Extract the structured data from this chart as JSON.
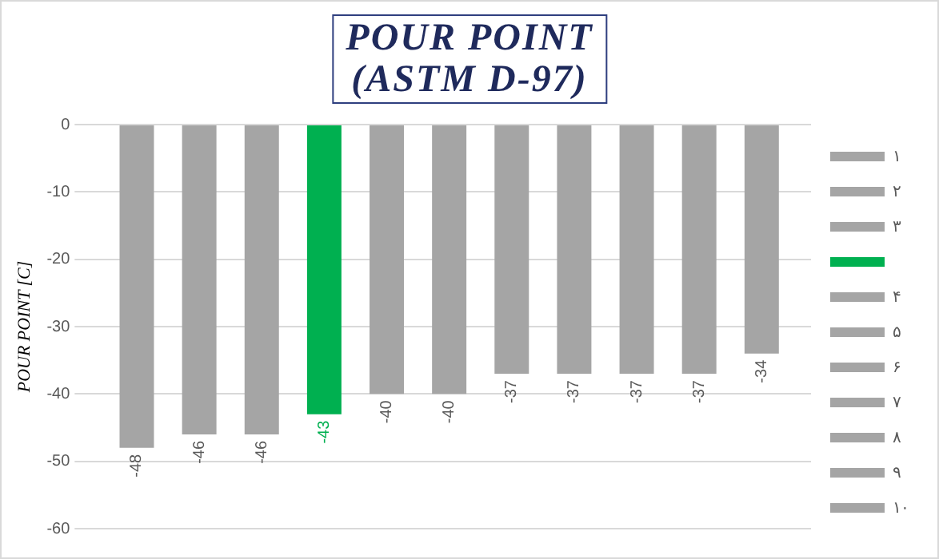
{
  "chart_data": {
    "type": "bar",
    "title": "POUR POINT\n(ASTM D-97)",
    "ylabel": "POUR POINT [C]",
    "categories": [
      null
    ],
    "series": [
      {
        "name": "۱",
        "color": "#a5a5a5",
        "values": [
          -48
        ]
      },
      {
        "name": "۲",
        "color": "#a5a5a5",
        "values": [
          -46
        ]
      },
      {
        "name": "۳",
        "color": "#a5a5a5",
        "values": [
          -46
        ]
      },
      {
        "color": "#00b050",
        "values": [
          -43
        ]
      },
      {
        "name": "۴",
        "color": "#a5a5a5",
        "values": [
          -40
        ]
      },
      {
        "name": "۵",
        "color": "#a5a5a5",
        "values": [
          -40
        ]
      },
      {
        "name": "۶",
        "color": "#a5a5a5",
        "values": [
          -37
        ]
      },
      {
        "name": "۷",
        "color": "#a5a5a5",
        "values": [
          -37
        ]
      },
      {
        "name": "۸",
        "color": "#a5a5a5",
        "values": [
          -37
        ]
      },
      {
        "name": "۹",
        "color": "#a5a5a5",
        "values": [
          -37
        ]
      },
      {
        "name": "۱۰",
        "color": "#a5a5a5",
        "values": [
          -34
        ]
      }
    ],
    "ylim": [
      -60,
      0
    ],
    "yticks": [
      -60,
      -50,
      -40,
      -30,
      -20,
      -10,
      0
    ],
    "grid": "y",
    "legend": "right",
    "data_labels": true
  }
}
